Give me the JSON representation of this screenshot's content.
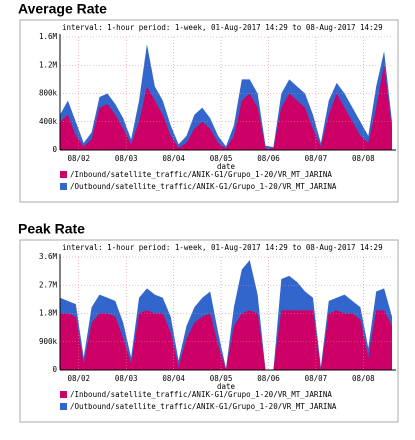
{
  "chart_data": [
    {
      "type": "area",
      "title": "Average Rate",
      "subtitle": "interval: 1-hour   period: 1-week, 01-Aug-2017 14:29 to 08-Aug-2017 14:29",
      "x_label": "date",
      "x": [
        0,
        4,
        8,
        12,
        16,
        20,
        24,
        28,
        32,
        36,
        40,
        44,
        48,
        52,
        56,
        60,
        64,
        68,
        72,
        76,
        80,
        84,
        88,
        92,
        96,
        100,
        104,
        108,
        112,
        116,
        120,
        124,
        128,
        132,
        136,
        140,
        144,
        148,
        152,
        156,
        160,
        164,
        168
      ],
      "xlim": [
        0,
        168
      ],
      "xticks": [
        {
          "value": 9.5,
          "label": "08/02"
        },
        {
          "value": 33.5,
          "label": "08/03"
        },
        {
          "value": 57.5,
          "label": "08/04"
        },
        {
          "value": 81.5,
          "label": "08/05"
        },
        {
          "value": 105.5,
          "label": "08/06"
        },
        {
          "value": 129.5,
          "label": "08/07"
        },
        {
          "value": 153.5,
          "label": "08/08"
        }
      ],
      "ylim": [
        0,
        1600000
      ],
      "yticks": [
        0,
        {
          "value": 400000,
          "label": "400k"
        },
        {
          "value": 800000,
          "label": "800k"
        },
        {
          "value": 1200000,
          "label": "1.2M"
        },
        {
          "value": 1600000,
          "label": "1.6M"
        }
      ],
      "grid": true,
      "series": [
        {
          "name": "/Inbound/satellite_traffic/ANIK-G1/Grupo_1-20/VR_MT_JARINA",
          "color": "#cc0066",
          "values": [
            400000,
            500000,
            200000,
            50000,
            150000,
            600000,
            650000,
            500000,
            300000,
            80000,
            400000,
            900000,
            700000,
            500000,
            200000,
            30000,
            100000,
            300000,
            400000,
            300000,
            100000,
            20000,
            200000,
            700000,
            800000,
            600000,
            20000,
            20000,
            600000,
            800000,
            700000,
            600000,
            300000,
            50000,
            500000,
            800000,
            600000,
            400000,
            200000,
            100000,
            600000,
            1200000,
            300000
          ]
        },
        {
          "name": "/Outbound/satellite_traffic/ANIK-G1/Grupo_1-20/VR_MT_JARINA",
          "color": "#3366cc",
          "values": [
            500000,
            700000,
            400000,
            100000,
            250000,
            750000,
            800000,
            650000,
            450000,
            150000,
            700000,
            1500000,
            900000,
            700000,
            350000,
            80000,
            200000,
            500000,
            600000,
            450000,
            200000,
            50000,
            350000,
            1000000,
            1000000,
            800000,
            60000,
            40000,
            800000,
            1000000,
            900000,
            800000,
            500000,
            100000,
            700000,
            950000,
            800000,
            600000,
            400000,
            200000,
            900000,
            1400000,
            400000
          ]
        }
      ]
    },
    {
      "type": "area",
      "title": "Peak Rate",
      "subtitle": "interval: 1-hour   period: 1-week, 01-Aug-2017 14:29 to 08-Aug-2017 14:29",
      "x_label": "date",
      "x": [
        0,
        4,
        8,
        12,
        16,
        20,
        24,
        28,
        32,
        36,
        40,
        44,
        48,
        52,
        56,
        60,
        64,
        68,
        72,
        76,
        80,
        84,
        88,
        92,
        96,
        100,
        104,
        108,
        112,
        116,
        120,
        124,
        128,
        132,
        136,
        140,
        144,
        148,
        152,
        156,
        160,
        164,
        168
      ],
      "xlim": [
        0,
        168
      ],
      "xticks": [
        {
          "value": 9.5,
          "label": "08/02"
        },
        {
          "value": 33.5,
          "label": "08/03"
        },
        {
          "value": 57.5,
          "label": "08/04"
        },
        {
          "value": 81.5,
          "label": "08/05"
        },
        {
          "value": 105.5,
          "label": "08/06"
        },
        {
          "value": 129.5,
          "label": "08/07"
        },
        {
          "value": 153.5,
          "label": "08/08"
        }
      ],
      "ylim": [
        0,
        3600000
      ],
      "yticks": [
        0,
        {
          "value": 900000,
          "label": "900k"
        },
        {
          "value": 1800000,
          "label": "1.8M"
        },
        {
          "value": 2700000,
          "label": "2.7M"
        },
        {
          "value": 3600000,
          "label": "3.6M"
        }
      ],
      "grid": true,
      "series": [
        {
          "name": "/Inbound/satellite_traffic/ANIK-G1/Grupo_1-20/VR_MT_JARINA",
          "color": "#cc0066",
          "values": [
            1800000,
            1800000,
            1700000,
            200000,
            1500000,
            1800000,
            1800000,
            1700000,
            1000000,
            200000,
            1800000,
            1900000,
            1800000,
            1800000,
            1200000,
            100000,
            1000000,
            1500000,
            1700000,
            1800000,
            800000,
            0,
            1400000,
            1800000,
            1900000,
            1800000,
            0,
            0,
            1900000,
            1900000,
            1900000,
            1900000,
            1900000,
            0,
            1800000,
            1900000,
            1800000,
            1800000,
            1600000,
            400000,
            1900000,
            1900000,
            1400000
          ]
        },
        {
          "name": "/Outbound/satellite_traffic/ANIK-G1/Grupo_1-20/VR_MT_JARINA",
          "color": "#3366cc",
          "values": [
            2300000,
            2200000,
            2100000,
            400000,
            2000000,
            2400000,
            2300000,
            2200000,
            1500000,
            400000,
            2300000,
            2600000,
            2400000,
            2300000,
            1700000,
            300000,
            1400000,
            2000000,
            2300000,
            2500000,
            1200000,
            50000,
            2000000,
            3200000,
            3500000,
            2400000,
            0,
            0,
            2900000,
            3000000,
            2800000,
            2500000,
            2300000,
            100000,
            2200000,
            2300000,
            2400000,
            2200000,
            2000000,
            700000,
            2500000,
            2600000,
            1700000
          ]
        }
      ]
    }
  ]
}
